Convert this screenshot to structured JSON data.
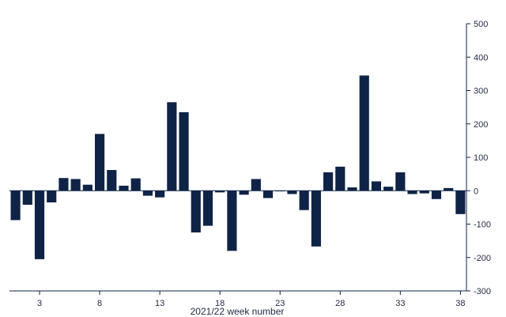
{
  "chart_data": {
    "type": "bar",
    "xlabel": "2021/22 week number",
    "ylabel": "",
    "ylim": [
      -300,
      500
    ],
    "yticks": [
      500,
      400,
      300,
      200,
      100,
      0,
      -100,
      -200,
      -300
    ],
    "xticks": [
      3,
      8,
      13,
      18,
      23,
      28,
      33,
      38
    ],
    "bar_color": "#0f2347",
    "grid": false,
    "x": [
      1,
      2,
      3,
      4,
      5,
      6,
      7,
      8,
      9,
      10,
      11,
      12,
      13,
      14,
      15,
      16,
      17,
      18,
      19,
      20,
      21,
      22,
      23,
      24,
      25,
      26,
      27,
      28,
      29,
      30,
      31,
      32,
      33,
      34,
      35,
      36,
      37,
      38
    ],
    "values": [
      -88,
      -42,
      -205,
      -35,
      38,
      35,
      18,
      170,
      62,
      15,
      37,
      -15,
      -20,
      265,
      235,
      -125,
      -105,
      -5,
      -180,
      -12,
      35,
      -22,
      0,
      -10,
      -58,
      -167,
      55,
      72,
      10,
      345,
      28,
      12,
      55,
      -10,
      -8,
      -25,
      8,
      -70
    ]
  }
}
